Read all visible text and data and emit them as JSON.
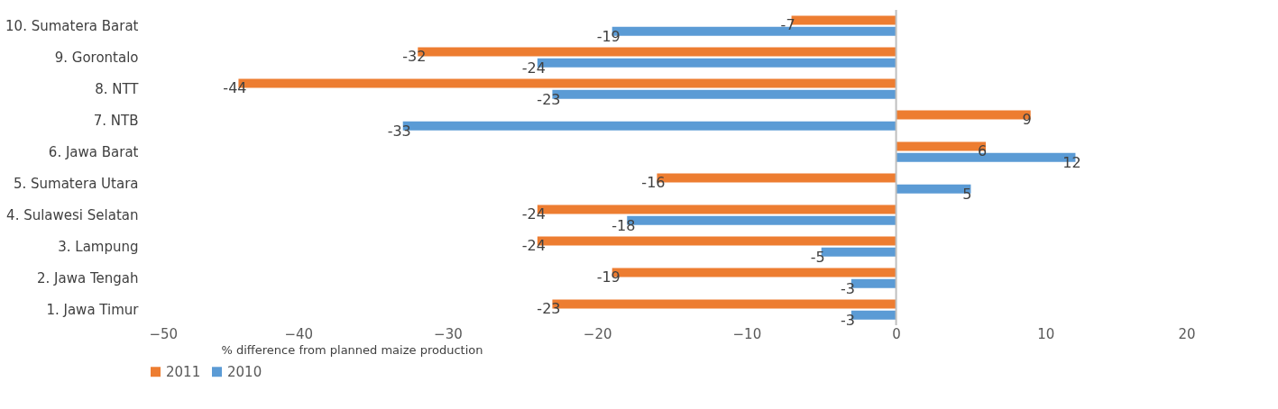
{
  "chart_data": {
    "type": "bar",
    "orientation": "horizontal",
    "xlabel": "% difference from planned maize production",
    "categories": [
      "10. Sumatera Barat",
      "9. Gorontalo",
      "8. NTT",
      "7. NTB",
      "6. Jawa Barat",
      "5. Sumatera Utara",
      "4. Sulawesi Selatan",
      "3. Lampung",
      "2. Jawa Tengah",
      "1. Jawa Timur"
    ],
    "series": [
      {
        "name": "2011",
        "color": "#ed7d31",
        "values": [
          -7,
          -32,
          -44,
          9,
          6,
          -16,
          -24,
          -24,
          -19,
          -23
        ]
      },
      {
        "name": "2010",
        "color": "#5b9bd5",
        "values": [
          -19,
          -24,
          -23,
          -33,
          12,
          5,
          -18,
          -5,
          -3,
          -3
        ]
      }
    ],
    "xlim": [
      -50,
      20
    ],
    "xticks": [
      -50,
      -40,
      -30,
      -20,
      -10,
      0,
      10,
      20
    ],
    "ref_lines": [
      {
        "axis": "x",
        "value": 0,
        "color": "#bfbfbf"
      }
    ],
    "data_labels": true,
    "grid": false,
    "legend": "bottom"
  }
}
